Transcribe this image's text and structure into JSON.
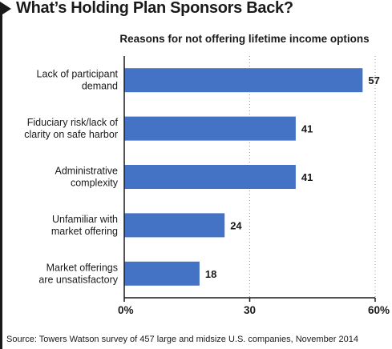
{
  "header": {
    "title": "What’s Holding Plan Sponsors Back?"
  },
  "colors": {
    "bar": "#4472c4",
    "axis": "#1a1a1a",
    "grid": "#9a9a9a"
  },
  "chart_data": {
    "type": "bar",
    "orientation": "horizontal",
    "title": "Reasons for not offering lifetime income options",
    "categories": [
      [
        "Lack of participant",
        "demand"
      ],
      [
        "Fiduciary risk/lack of",
        "clarity on safe harbor"
      ],
      [
        "Administrative",
        "complexity"
      ],
      [
        "Unfamiliar with",
        "market offering"
      ],
      [
        "Market offerings",
        "are unsatisfactory"
      ]
    ],
    "values": [
      57,
      41,
      41,
      24,
      18
    ],
    "value_labels": [
      "57",
      "41",
      "41",
      "24",
      "18"
    ],
    "xlim": [
      0,
      60
    ],
    "ticks": [
      0,
      30,
      60
    ],
    "tick_labels": [
      "0%",
      "30",
      "60%"
    ],
    "unit": "%",
    "grid": true,
    "legend": "none"
  },
  "footer": {
    "source": "Source: Towers Watson survey of 457 large and midsize U.S. companies, November 2014"
  }
}
